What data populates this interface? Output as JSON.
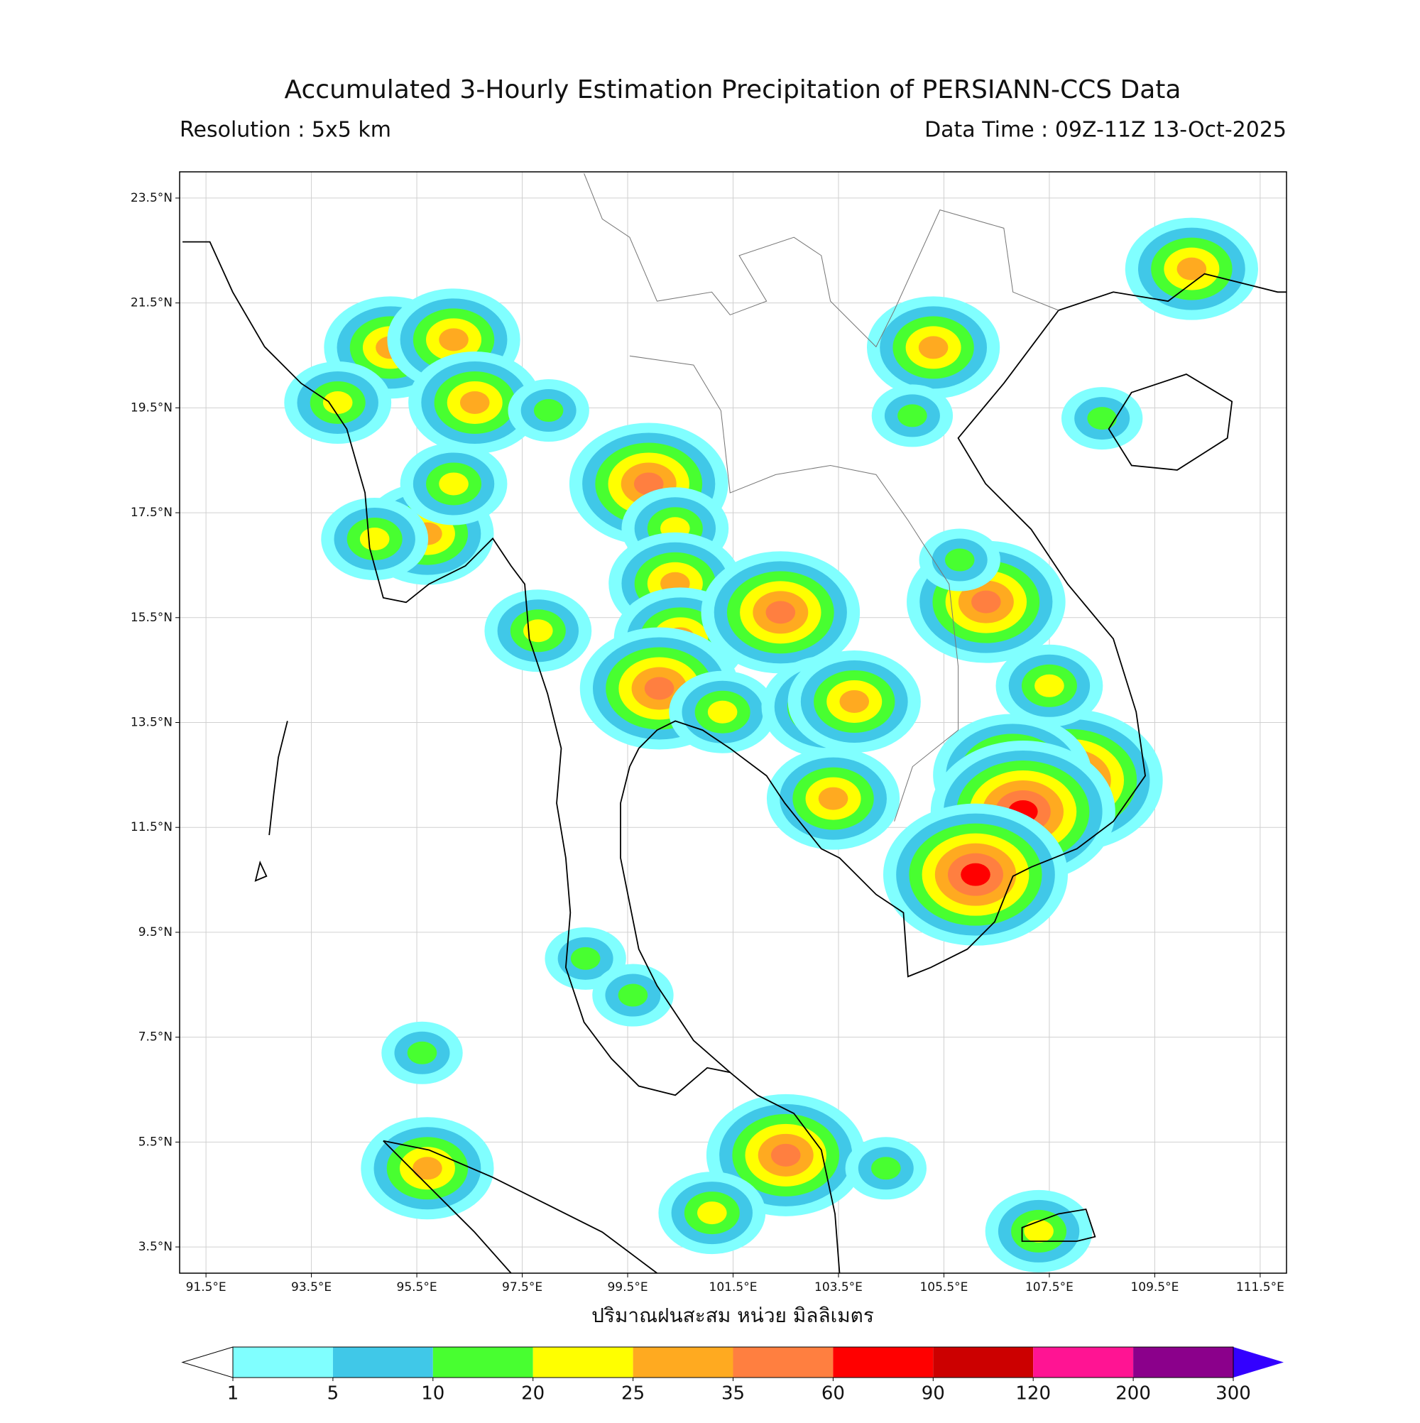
{
  "map": {
    "title": "Accumulated 3-Hourly Estimation Precipitation of PERSIANN-CCS Data",
    "subtitle_left": "Resolution : 5x5 km",
    "subtitle_right": "Data Time : 09Z-11Z 13-Oct-2025",
    "xlabel": "ปริมาณฝนสะสม หน่วย มิลลิเมตร",
    "xlim": [
      91,
      112
    ],
    "ylim": [
      3,
      24
    ],
    "xticks": [
      {
        "value": 91.5,
        "label": "91.5°E"
      },
      {
        "value": 93.5,
        "label": "93.5°E"
      },
      {
        "value": 95.5,
        "label": "95.5°E"
      },
      {
        "value": 97.5,
        "label": "97.5°E"
      },
      {
        "value": 99.5,
        "label": "99.5°E"
      },
      {
        "value": 101.5,
        "label": "101.5°E"
      },
      {
        "value": 103.5,
        "label": "103.5°E"
      },
      {
        "value": 105.5,
        "label": "105.5°E"
      },
      {
        "value": 107.5,
        "label": "107.5°E"
      },
      {
        "value": 109.5,
        "label": "109.5°E"
      },
      {
        "value": 111.5,
        "label": "111.5°E"
      }
    ],
    "yticks": [
      {
        "value": 3.5,
        "label": "3.5°N"
      },
      {
        "value": 5.5,
        "label": "5.5°N"
      },
      {
        "value": 7.5,
        "label": "7.5°N"
      },
      {
        "value": 9.5,
        "label": "9.5°N"
      },
      {
        "value": 11.5,
        "label": "11.5°N"
      },
      {
        "value": 13.5,
        "label": "13.5°N"
      },
      {
        "value": 15.5,
        "label": "15.5°N"
      },
      {
        "value": 17.5,
        "label": "17.5°N"
      },
      {
        "value": 19.5,
        "label": "19.5°N"
      },
      {
        "value": 21.5,
        "label": "21.5°N"
      },
      {
        "value": 23.5,
        "label": "23.5°N"
      }
    ],
    "grid": true,
    "colorbar": {
      "levels": [
        1,
        5,
        10,
        20,
        25,
        35,
        60,
        90,
        120,
        200,
        300
      ],
      "colors": [
        "#80ffff",
        "#40c8e8",
        "#48ff30",
        "#ffff00",
        "#ffaa20",
        "#ff7f40",
        "#ff0000",
        "#cc0000",
        "#ff1493",
        "#8b008b"
      ],
      "under_color": "#ffffff",
      "over_color": "#3300ff"
    },
    "rain_cells": [
      {
        "lon": 95.0,
        "lat": 20.65,
        "mm": 25
      },
      {
        "lon": 96.2,
        "lat": 20.8,
        "mm": 25
      },
      {
        "lon": 95.7,
        "lat": 17.1,
        "mm": 25
      },
      {
        "lon": 94.7,
        "lat": 17.0,
        "mm": 20
      },
      {
        "lon": 94.0,
        "lat": 19.6,
        "mm": 20
      },
      {
        "lon": 96.6,
        "lat": 19.6,
        "mm": 25
      },
      {
        "lon": 96.2,
        "lat": 18.05,
        "mm": 20
      },
      {
        "lon": 99.9,
        "lat": 18.05,
        "mm": 35
      },
      {
        "lon": 100.4,
        "lat": 17.2,
        "mm": 20
      },
      {
        "lon": 100.4,
        "lat": 16.15,
        "mm": 25
      },
      {
        "lon": 100.5,
        "lat": 15.1,
        "mm": 25
      },
      {
        "lon": 100.1,
        "lat": 14.15,
        "mm": 35
      },
      {
        "lon": 101.3,
        "lat": 13.7,
        "mm": 20
      },
      {
        "lon": 102.4,
        "lat": 15.6,
        "mm": 35
      },
      {
        "lon": 103.3,
        "lat": 13.8,
        "mm": 25
      },
      {
        "lon": 103.8,
        "lat": 13.9,
        "mm": 25
      },
      {
        "lon": 103.4,
        "lat": 12.05,
        "mm": 25
      },
      {
        "lon": 105.3,
        "lat": 20.65,
        "mm": 25
      },
      {
        "lon": 104.9,
        "lat": 19.35,
        "mm": 10
      },
      {
        "lon": 108.5,
        "lat": 19.3,
        "mm": 10
      },
      {
        "lon": 110.2,
        "lat": 22.15,
        "mm": 25
      },
      {
        "lon": 106.3,
        "lat": 15.8,
        "mm": 35
      },
      {
        "lon": 105.8,
        "lat": 16.6,
        "mm": 10
      },
      {
        "lon": 107.9,
        "lat": 12.4,
        "mm": 60
      },
      {
        "lon": 106.8,
        "lat": 12.5,
        "mm": 35
      },
      {
        "lon": 107.0,
        "lat": 11.8,
        "mm": 60
      },
      {
        "lon": 106.1,
        "lat": 10.6,
        "mm": 60
      },
      {
        "lon": 107.5,
        "lat": 14.2,
        "mm": 20
      },
      {
        "lon": 95.7,
        "lat": 5.0,
        "mm": 25
      },
      {
        "lon": 102.5,
        "lat": 5.25,
        "mm": 35
      },
      {
        "lon": 101.1,
        "lat": 4.15,
        "mm": 20
      },
      {
        "lon": 107.3,
        "lat": 3.8,
        "mm": 20
      },
      {
        "lon": 98.0,
        "lat": 19.45,
        "mm": 10
      },
      {
        "lon": 97.8,
        "lat": 15.25,
        "mm": 20
      },
      {
        "lon": 98.7,
        "lat": 9.0,
        "mm": 10
      },
      {
        "lon": 99.6,
        "lat": 8.3,
        "mm": 10
      },
      {
        "lon": 104.4,
        "lat": 5.0,
        "mm": 10
      },
      {
        "lon": 95.6,
        "lat": 7.2,
        "mm": 10
      }
    ]
  }
}
